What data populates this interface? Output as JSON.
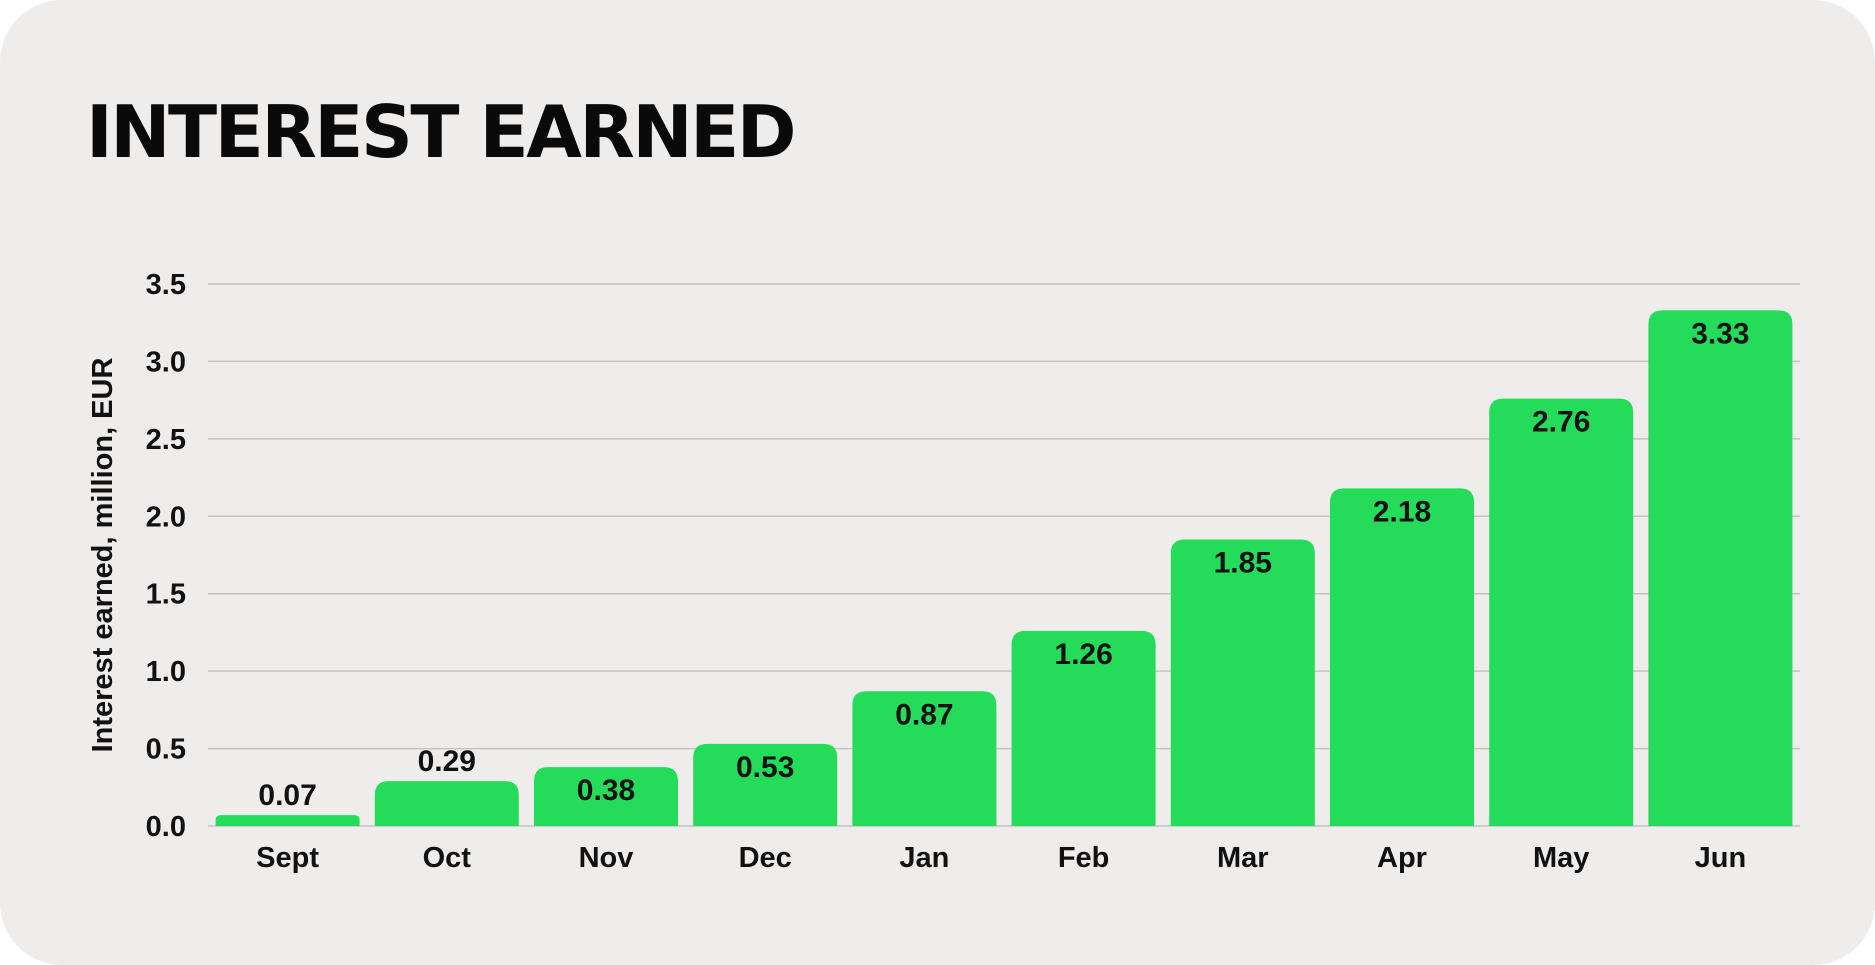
{
  "chart_data": {
    "type": "bar",
    "title": "INTEREST EARNED",
    "xlabel": "",
    "ylabel": "Interest earned, million, EUR",
    "categories": [
      "Sept",
      "Oct",
      "Nov",
      "Dec",
      "Jan",
      "Feb",
      "Mar",
      "Apr",
      "May",
      "Jun"
    ],
    "values": [
      0.07,
      0.29,
      0.38,
      0.53,
      0.87,
      1.26,
      1.85,
      2.18,
      2.76,
      3.33
    ],
    "data_labels": [
      "0.07",
      "0.29",
      "0.38",
      "0.53",
      "0.87",
      "1.26",
      "1.85",
      "2.18",
      "2.76",
      "3.33"
    ],
    "ylim": [
      0,
      3.5
    ],
    "yticks": [
      "0.0",
      "0.5",
      "1.0",
      "1.5",
      "2.0",
      "2.5",
      "3.0",
      "3.5"
    ],
    "grid": true,
    "legend": "none",
    "colors": {
      "bar": "#24dc59",
      "grid": "#c4c4c4",
      "text": "#111111",
      "background": "#efedec"
    }
  }
}
